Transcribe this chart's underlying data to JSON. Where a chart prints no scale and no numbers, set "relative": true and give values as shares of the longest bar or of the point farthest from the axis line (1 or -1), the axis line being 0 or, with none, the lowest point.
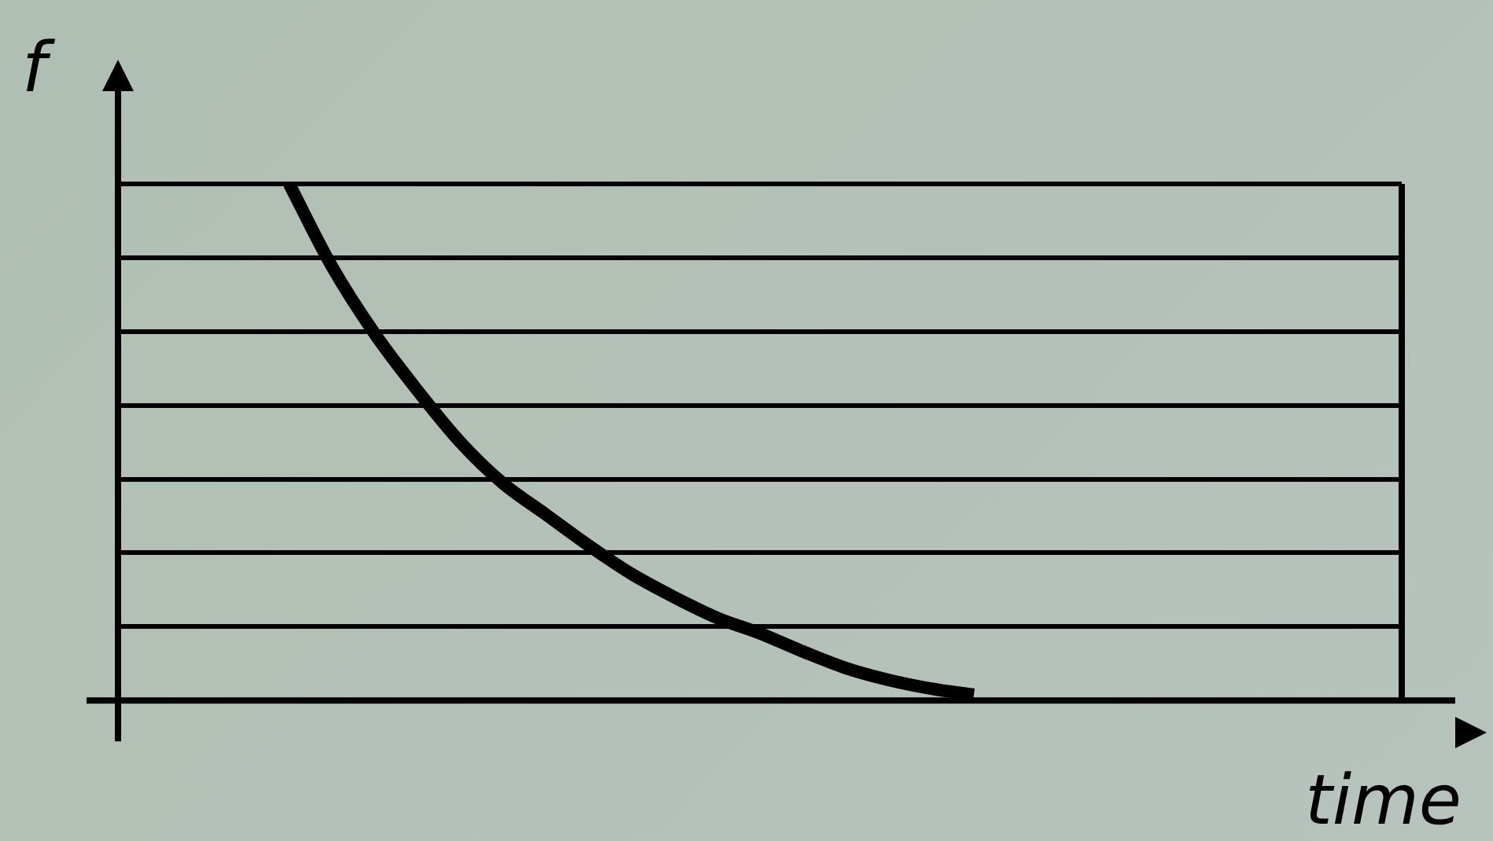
{
  "chart_data": {
    "type": "line",
    "relative": true,
    "xlabel": "time",
    "ylabel": "f",
    "grid": "y",
    "marker": "none",
    "line_style": "solid",
    "legend": false,
    "categories": [
      null,
      null,
      null,
      null,
      null,
      null,
      null,
      null,
      null,
      null,
      null,
      null,
      null,
      null,
      null,
      null,
      null,
      null,
      null,
      null,
      null,
      null,
      null,
      null,
      null,
      null,
      null,
      null,
      null,
      null,
      null
    ],
    "series": [
      {
        "color": "#000000",
        "values": [
          null,
          null,
          null,
          null,
          1.0,
          0.84,
          0.71,
          0.6,
          0.5,
          0.42,
          0.36,
          0.3,
          0.245,
          0.2,
          0.16,
          0.13,
          0.095,
          0.063,
          0.04,
          0.023,
          0.011,
          null,
          null,
          null,
          null,
          null,
          null,
          null,
          null,
          null,
          null
        ]
      }
    ]
  }
}
